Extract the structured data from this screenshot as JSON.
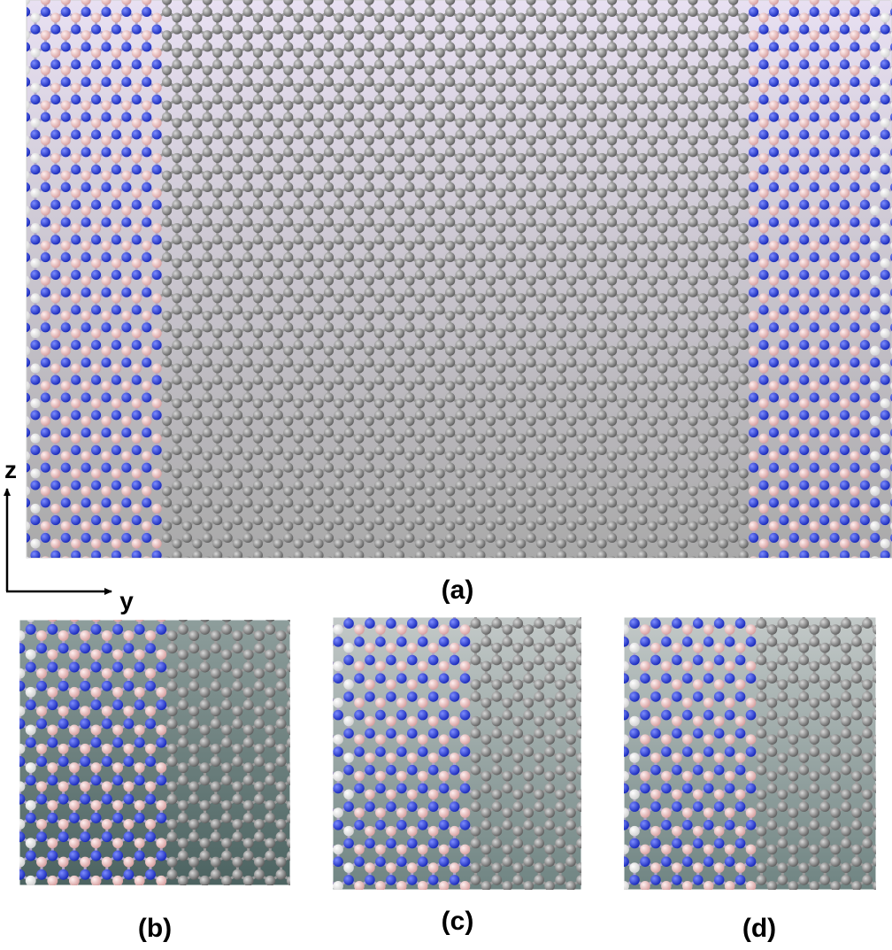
{
  "axes": {
    "vertical": "z",
    "horizontal": "y"
  },
  "panels": [
    {
      "label": "(a)"
    },
    {
      "label": "(b)"
    },
    {
      "label": "(c)"
    },
    {
      "label": "(d)"
    }
  ]
}
